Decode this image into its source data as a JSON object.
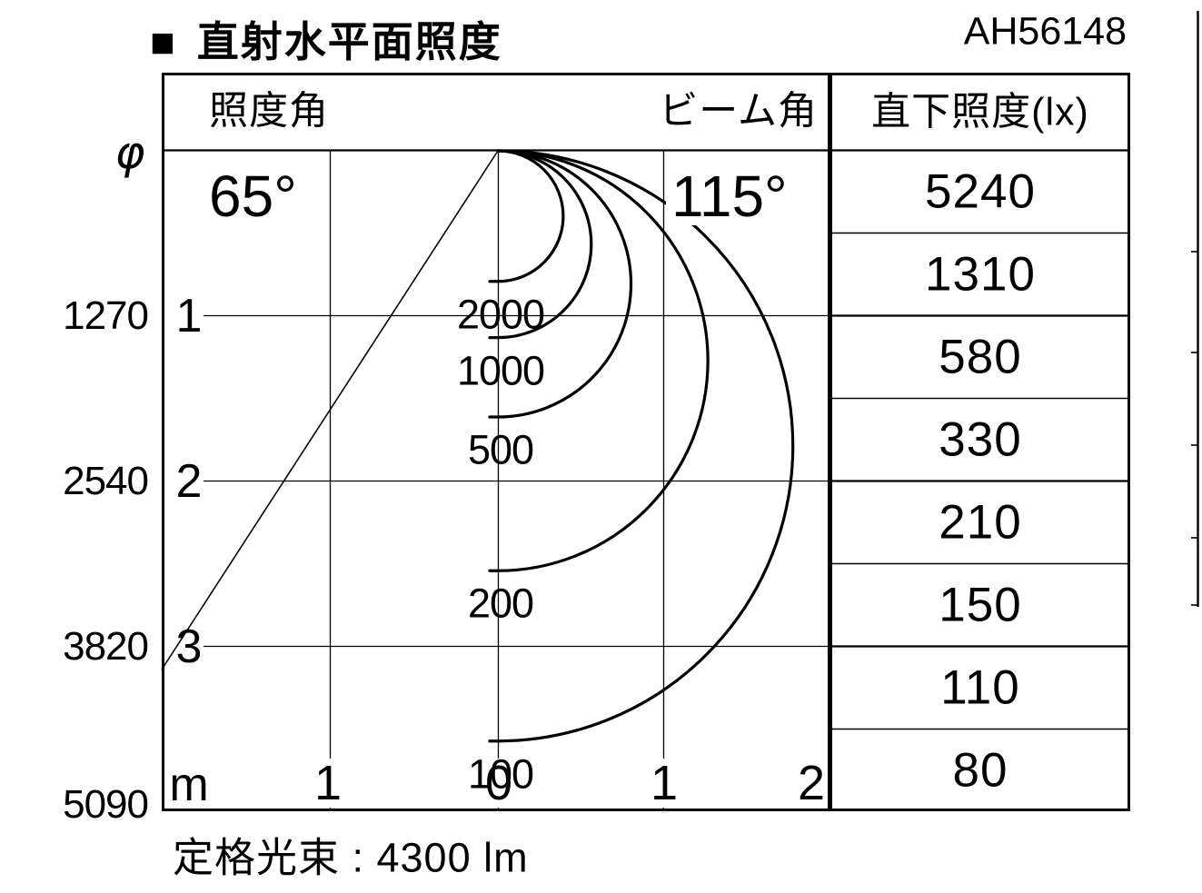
{
  "page": {
    "title_marker": "■",
    "title": "直射水平面照度",
    "model": "AH56148",
    "footnote": "定格光束 : 4300 lm"
  },
  "chart_data": {
    "type": "isolux_cone_diagram",
    "title": "直射水平面照度",
    "model": "AH56148",
    "header": {
      "illuminance_angle_label": "照度角",
      "beam_angle_label": "ビーム角"
    },
    "illuminance_angle": "65°",
    "beam_angle": "115°",
    "phi_symbol": "φ",
    "axis": {
      "unit_label": "m",
      "left_beam_diameter_labels": [
        "1270",
        "2540",
        "3820",
        "5090"
      ],
      "vertical_distance_ticks": [
        "1",
        "2",
        "3"
      ],
      "horizontal_ticks": [
        "1",
        "0",
        "1",
        "2"
      ],
      "vertical_range_m": [
        0,
        4
      ],
      "horizontal_range_m": [
        -2,
        2
      ],
      "grid": true
    },
    "isolux_curves": [
      {
        "label": "2000",
        "illuminance_lx": 2000,
        "depth_m": 0.79
      },
      {
        "label": "1000",
        "illuminance_lx": 1000,
        "depth_m": 1.13
      },
      {
        "label": "500",
        "illuminance_lx": 500,
        "depth_m": 1.61
      },
      {
        "label": "200",
        "illuminance_lx": 200,
        "depth_m": 2.54
      },
      {
        "label": "100",
        "illuminance_lx": 100,
        "depth_m": 3.57
      }
    ],
    "table": {
      "header": "直下照度(lx)",
      "values": [
        "5240",
        "1310",
        "580",
        "330",
        "210",
        "150",
        "110",
        "80"
      ]
    }
  }
}
